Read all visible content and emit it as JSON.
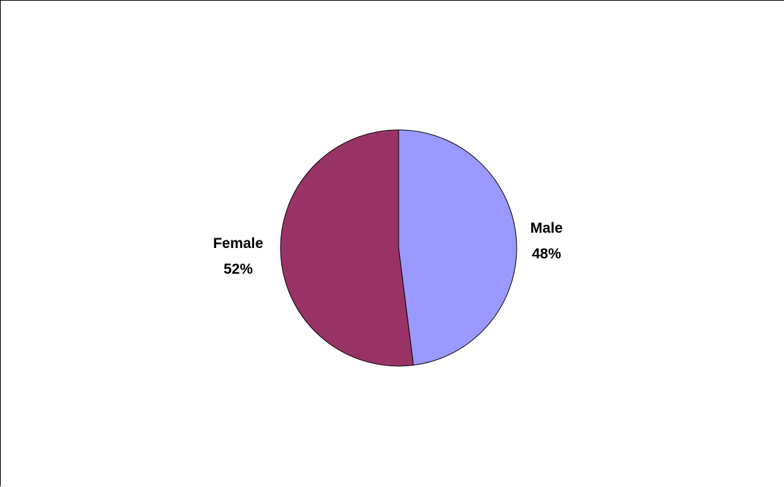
{
  "chart_data": {
    "type": "pie",
    "slices": [
      {
        "name": "Male",
        "value": 48,
        "label": "48%",
        "color": "#9999ff"
      },
      {
        "name": "Female",
        "value": 52,
        "label": "52%",
        "color": "#993366"
      }
    ],
    "start_angle": "12 o'clock",
    "direction": "clockwise",
    "legend": "none",
    "data_labels": "category name and percentage outside slices"
  }
}
